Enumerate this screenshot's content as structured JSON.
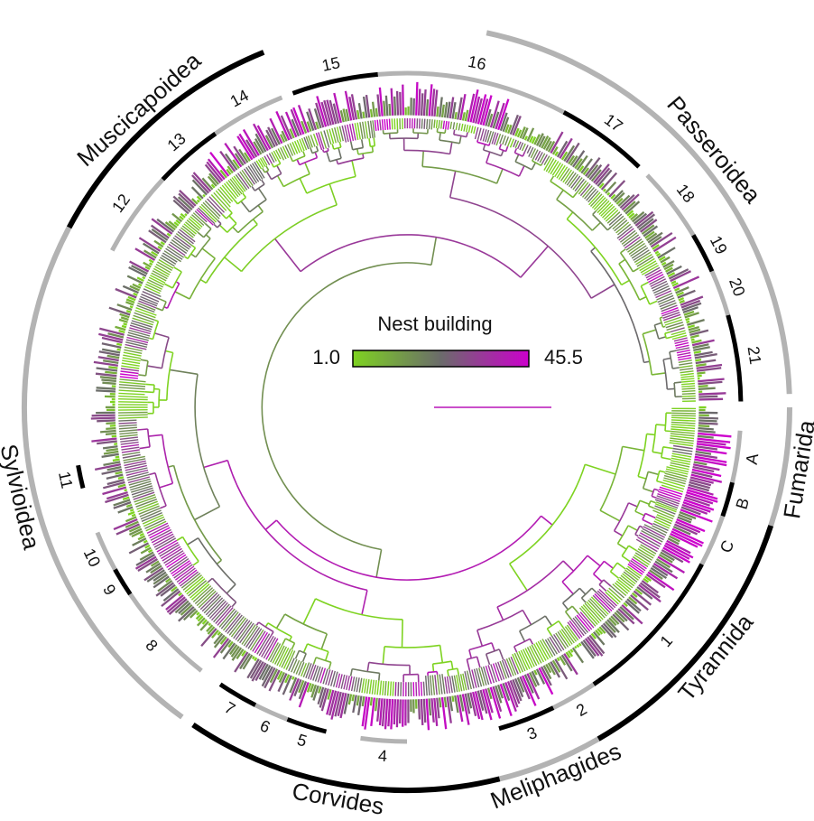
{
  "legend": {
    "title": "Nest building",
    "min_label": "1.0",
    "max_label": "45.5",
    "color_low": "#7ed321",
    "color_mid": "#6b6b6b",
    "color_high": "#cc00cc"
  },
  "groups": [
    {
      "name": "Passeroidea",
      "from": 12,
      "to": 88,
      "color": "#b3b3b3"
    },
    {
      "name": "Fumarida",
      "from": 90,
      "to": 108,
      "color": "#b3b3b3"
    },
    {
      "name": "Tyrannida",
      "from": 108,
      "to": 150,
      "color": "#000000"
    },
    {
      "name": "Meliphagides",
      "from": 150,
      "to": 166,
      "color": "#b3b3b3"
    },
    {
      "name": "Corvides",
      "from": 166,
      "to": 214,
      "color": "#000000"
    },
    {
      "name": "Sylvioidea",
      "from": 216,
      "to": 298,
      "color": "#b3b3b3"
    },
    {
      "name": "Muscicapoidea",
      "from": 298,
      "to": 338,
      "color": "#000000"
    }
  ],
  "clades": [
    {
      "label": "15",
      "from": 340,
      "to": 355,
      "color": "#000000"
    },
    {
      "label": "16",
      "from": 355,
      "to": 28,
      "color": "#b3b3b3"
    },
    {
      "label": "17",
      "from": 28,
      "to": 44,
      "color": "#000000"
    },
    {
      "label": "18",
      "from": 46,
      "to": 59,
      "color": "#b3b3b3"
    },
    {
      "label": "19",
      "from": 59,
      "to": 66,
      "color": "#000000"
    },
    {
      "label": "20",
      "from": 66,
      "to": 74,
      "color": "#b3b3b3"
    },
    {
      "label": "21",
      "from": 74,
      "to": 89,
      "color": "#000000"
    },
    {
      "label": "A",
      "from": 94,
      "to": 103,
      "color": "#b3b3b3"
    },
    {
      "label": "B",
      "from": 103,
      "to": 109,
      "color": "#000000"
    },
    {
      "label": "C",
      "from": 109,
      "to": 118,
      "color": "#b3b3b3"
    },
    {
      "label": "1",
      "from": 118,
      "to": 146,
      "color": "#000000"
    },
    {
      "label": "2",
      "from": 146,
      "to": 154,
      "color": "#b3b3b3"
    },
    {
      "label": "3",
      "from": 154,
      "to": 164,
      "color": "#000000"
    },
    {
      "label": "4",
      "from": 180,
      "to": 188,
      "color": "#b3b3b3"
    },
    {
      "label": "5",
      "from": 194,
      "to": 201,
      "color": "#000000"
    },
    {
      "label": "6",
      "from": 201,
      "to": 207,
      "color": "#b3b3b3"
    },
    {
      "label": "7",
      "from": 207,
      "to": 214,
      "color": "#000000"
    },
    {
      "label": "8",
      "from": 218,
      "to": 236,
      "color": "#b3b3b3"
    },
    {
      "label": "9",
      "from": 236,
      "to": 241,
      "color": "#000000"
    },
    {
      "label": "10",
      "from": 241,
      "to": 248,
      "color": "#b3b3b3"
    },
    {
      "label": "11",
      "from": 256,
      "to": 260,
      "color": "#000000"
    },
    {
      "label": "12",
      "from": 298,
      "to": 313,
      "color": "#b3b3b3"
    },
    {
      "label": "13",
      "from": 313,
      "to": 325,
      "color": "#000000"
    },
    {
      "label": "14",
      "from": 325,
      "to": 338,
      "color": "#b3b3b3"
    }
  ]
}
